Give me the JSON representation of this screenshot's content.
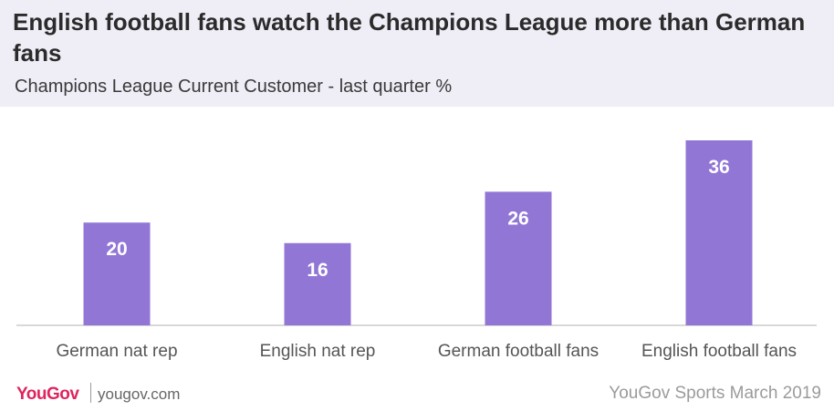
{
  "header": {
    "title": "English football fans watch the Champions League more than German fans",
    "subtitle": "Champions League Current Customer - last quarter %"
  },
  "chart_data": {
    "type": "bar",
    "categories": [
      "German nat rep",
      "English nat rep",
      "German football fans",
      "English football fans"
    ],
    "values": [
      20,
      16,
      26,
      36
    ],
    "ylim": [
      0,
      40
    ],
    "bar_color": "#9176d6",
    "baseline_color": "#cccccc",
    "grid": false,
    "legend": "none"
  },
  "footer": {
    "brand": "YouGov",
    "site": "yougov.com",
    "source": "YouGov Sports March 2019"
  }
}
